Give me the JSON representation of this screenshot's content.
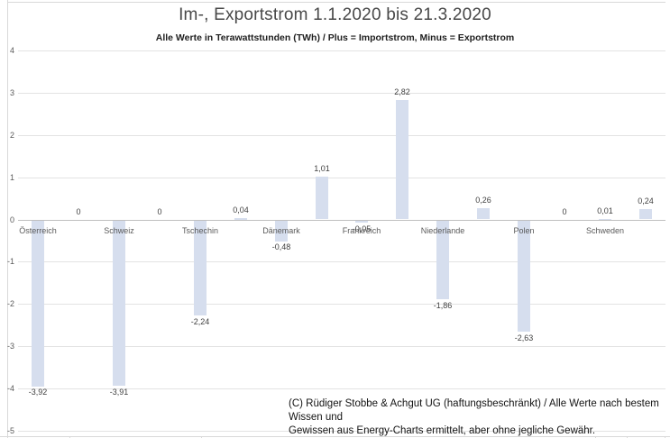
{
  "chart_data": {
    "type": "bar",
    "title": "Im-, Exportstrom 1.1.2020 bis 21.3.2020",
    "subtitle": "Alle Werte in Terawattstunden (TWh) / Plus = Importstrom, Minus = Exportstrom",
    "unit": "TWh",
    "ylim": [
      -5,
      4
    ],
    "ytick_labels": [
      "4",
      "3",
      "2",
      "1",
      "0",
      "-1",
      "-2",
      "-3",
      "-4",
      "-5"
    ],
    "grid": true,
    "legend": "none",
    "bar_color": "#d6deee",
    "series_note": "two bars per country: Exportstrom (negative), Importstrom (positive)",
    "countries": [
      {
        "label": "Österreich",
        "export": -3.92,
        "import": 0,
        "export_label": "-3,92",
        "import_label": "0"
      },
      {
        "label": "Schweiz",
        "export": -3.91,
        "import": 0,
        "export_label": "-3,91",
        "import_label": "0"
      },
      {
        "label": "Tschechin",
        "export": -2.24,
        "import": 0.04,
        "export_label": "-2,24",
        "import_label": "0,04"
      },
      {
        "label": "Dänemark",
        "export": -0.48,
        "import": 1.01,
        "export_label": "-0,48",
        "import_label": "1,01"
      },
      {
        "label": "Frankreich",
        "export": -0.05,
        "import": 2.82,
        "export_label": "-0,05",
        "import_label": "2,82"
      },
      {
        "label": "Niederlande",
        "export": -1.86,
        "import": 0.26,
        "export_label": "-1,86",
        "import_label": "0,26"
      },
      {
        "label": "Polen",
        "export": -2.63,
        "import": 0,
        "export_label": "-2,63",
        "import_label": "0"
      },
      {
        "label": "Schweden",
        "export": 0.01,
        "import": 0.24,
        "export_label": "0,01",
        "import_label": "0,24"
      }
    ],
    "copyright_line1": "(C) Rüdiger Stobbe & Achgut UG (haftungsbeschränkt) / Alle Werte nach bestem Wissen und",
    "copyright_line2": "Gewissen aus Energy-Charts ermittelt, aber ohne jegliche Gewähr."
  }
}
